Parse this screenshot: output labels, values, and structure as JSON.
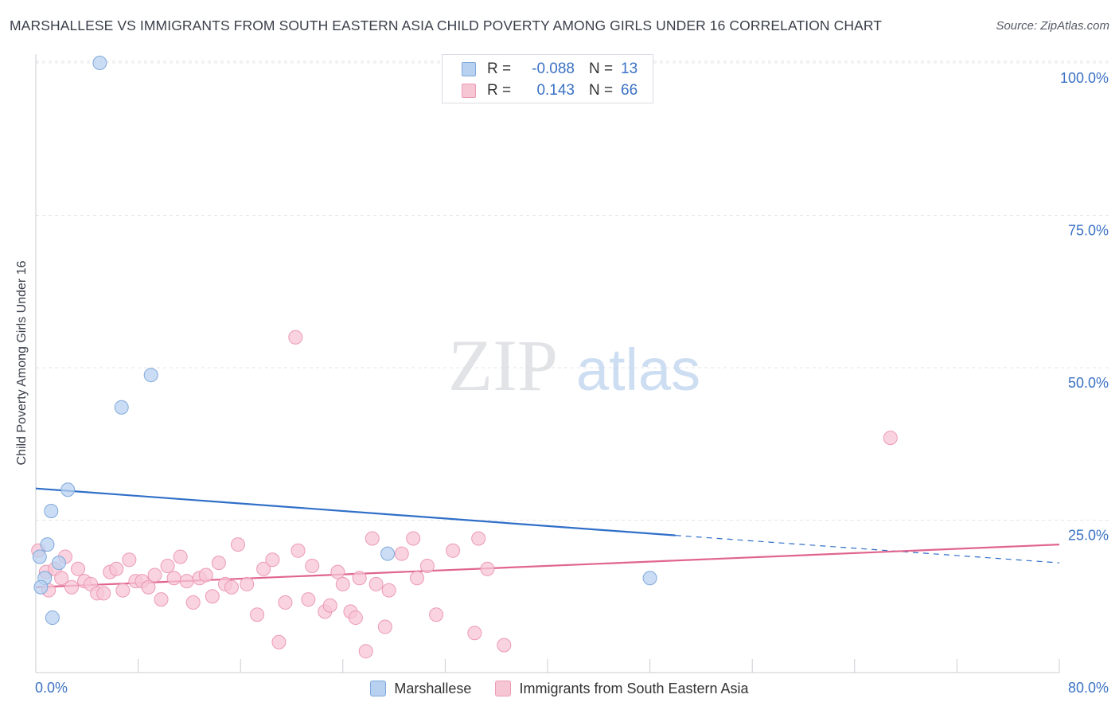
{
  "title": "MARSHALLESE VS IMMIGRANTS FROM SOUTH EASTERN ASIA CHILD POVERTY AMONG GIRLS UNDER 16 CORRELATION CHART",
  "source": "Source: ZipAtlas.com",
  "watermark": {
    "zip": "ZIP",
    "atlas": "atlas"
  },
  "legend_top": [
    {
      "r_label": "R =",
      "r_value": "-0.088",
      "n_label": "N =",
      "n_value": "13"
    },
    {
      "r_label": "R =",
      "r_value": "0.143",
      "n_label": "N =",
      "n_value": "66"
    }
  ],
  "colors": {
    "blue_fill": "#b9d1f0",
    "blue_stroke": "#7fa8dc",
    "blue_line": "#2f6fc8",
    "pink_fill": "#f7c6d5",
    "pink_stroke": "#ec9ab4",
    "pink_line": "#e0648f",
    "grid": "#e3e5e9",
    "axis_text": "#3b72c4"
  },
  "chart_data": {
    "type": "scatter",
    "title": "MARSHALLESE VS IMMIGRANTS FROM SOUTH EASTERN ASIA CHILD POVERTY AMONG GIRLS UNDER 16 CORRELATION CHART",
    "xlabel": "",
    "ylabel": "Child Poverty Among Girls Under 16",
    "xlim": [
      0,
      80
    ],
    "ylim": [
      0,
      104
    ],
    "x_tick_labels": [
      "0.0%",
      "80.0%"
    ],
    "y_tick_values": [
      25,
      50,
      75,
      100
    ],
    "y_tick_labels": [
      "25.0%",
      "50.0%",
      "75.0%",
      "100.0%"
    ],
    "grid": true,
    "legend_position": "bottom",
    "series": [
      {
        "name": "Marshallese",
        "r": -0.088,
        "n": 13,
        "trend": {
          "x_start": 0,
          "y_start": 30.2,
          "x_end": 50,
          "y_end": 22.5,
          "dashed_to_x": 80,
          "dashed_end_y": 18.0
        },
        "points": [
          {
            "x": 5.0,
            "y": 100
          },
          {
            "x": 9.0,
            "y": 48.8
          },
          {
            "x": 6.7,
            "y": 43.5
          },
          {
            "x": 2.5,
            "y": 30.0
          },
          {
            "x": 1.2,
            "y": 26.5
          },
          {
            "x": 0.9,
            "y": 21.0
          },
          {
            "x": 0.3,
            "y": 19.0
          },
          {
            "x": 1.8,
            "y": 18.0
          },
          {
            "x": 0.7,
            "y": 15.5
          },
          {
            "x": 0.4,
            "y": 14.0
          },
          {
            "x": 1.3,
            "y": 9.0
          },
          {
            "x": 27.5,
            "y": 19.5
          },
          {
            "x": 48.0,
            "y": 15.5
          }
        ]
      },
      {
        "name": "Immigrants from South Eastern Asia",
        "r": 0.143,
        "n": 66,
        "trend": {
          "x_start": 0,
          "y_start": 14.0,
          "x_end": 80,
          "y_end": 21.0
        },
        "points": [
          {
            "x": 0.2,
            "y": 20.0
          },
          {
            "x": 0.8,
            "y": 16.5
          },
          {
            "x": 1.5,
            "y": 17.0
          },
          {
            "x": 2.0,
            "y": 15.5
          },
          {
            "x": 2.8,
            "y": 14.0
          },
          {
            "x": 3.3,
            "y": 17.0
          },
          {
            "x": 3.8,
            "y": 15.0
          },
          {
            "x": 4.3,
            "y": 14.5
          },
          {
            "x": 4.8,
            "y": 13.0
          },
          {
            "x": 5.3,
            "y": 13.0
          },
          {
            "x": 5.8,
            "y": 16.5
          },
          {
            "x": 6.3,
            "y": 17.0
          },
          {
            "x": 6.8,
            "y": 13.5
          },
          {
            "x": 7.3,
            "y": 18.5
          },
          {
            "x": 7.8,
            "y": 15.0
          },
          {
            "x": 8.3,
            "y": 15.0
          },
          {
            "x": 8.8,
            "y": 14.0
          },
          {
            "x": 9.3,
            "y": 16.0
          },
          {
            "x": 9.8,
            "y": 12.0
          },
          {
            "x": 10.3,
            "y": 17.5
          },
          {
            "x": 10.8,
            "y": 15.5
          },
          {
            "x": 11.3,
            "y": 19.0
          },
          {
            "x": 11.8,
            "y": 15.0
          },
          {
            "x": 12.3,
            "y": 11.5
          },
          {
            "x": 12.8,
            "y": 15.5
          },
          {
            "x": 13.3,
            "y": 16.0
          },
          {
            "x": 13.8,
            "y": 12.5
          },
          {
            "x": 14.3,
            "y": 18.0
          },
          {
            "x": 14.8,
            "y": 14.5
          },
          {
            "x": 15.3,
            "y": 14.0
          },
          {
            "x": 15.8,
            "y": 21.0
          },
          {
            "x": 16.5,
            "y": 14.5
          },
          {
            "x": 17.3,
            "y": 9.5
          },
          {
            "x": 17.8,
            "y": 17.0
          },
          {
            "x": 18.5,
            "y": 18.5
          },
          {
            "x": 19.0,
            "y": 5.0
          },
          {
            "x": 19.5,
            "y": 11.5
          },
          {
            "x": 20.3,
            "y": 55.0
          },
          {
            "x": 20.5,
            "y": 20.0
          },
          {
            "x": 21.3,
            "y": 12.0
          },
          {
            "x": 21.6,
            "y": 17.5
          },
          {
            "x": 22.6,
            "y": 10.0
          },
          {
            "x": 23.0,
            "y": 11.0
          },
          {
            "x": 23.6,
            "y": 16.5
          },
          {
            "x": 24.0,
            "y": 14.5
          },
          {
            "x": 24.6,
            "y": 10.0
          },
          {
            "x": 25.0,
            "y": 9.0
          },
          {
            "x": 25.3,
            "y": 15.5
          },
          {
            "x": 25.8,
            "y": 3.5
          },
          {
            "x": 26.3,
            "y": 22.0
          },
          {
            "x": 26.6,
            "y": 14.5
          },
          {
            "x": 27.3,
            "y": 7.5
          },
          {
            "x": 27.6,
            "y": 13.5
          },
          {
            "x": 28.6,
            "y": 19.5
          },
          {
            "x": 29.5,
            "y": 22.0
          },
          {
            "x": 29.8,
            "y": 15.5
          },
          {
            "x": 30.6,
            "y": 17.5
          },
          {
            "x": 31.3,
            "y": 9.5
          },
          {
            "x": 32.6,
            "y": 20.0
          },
          {
            "x": 34.3,
            "y": 6.5
          },
          {
            "x": 34.6,
            "y": 22.0
          },
          {
            "x": 35.3,
            "y": 17.0
          },
          {
            "x": 36.6,
            "y": 4.5
          },
          {
            "x": 66.8,
            "y": 38.5
          },
          {
            "x": 1.0,
            "y": 13.5
          },
          {
            "x": 2.3,
            "y": 19.0
          }
        ]
      }
    ]
  }
}
